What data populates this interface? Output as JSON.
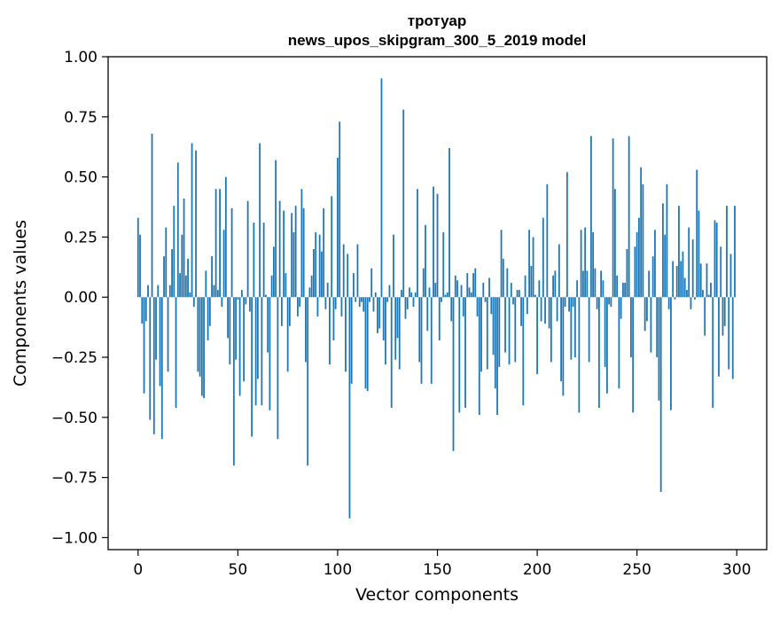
{
  "chart_data": {
    "type": "bar",
    "title": "тротуар",
    "subtitle": "news_upos_skipgram_300_5_2019 model",
    "xlabel": "Vector components",
    "ylabel": "Components values",
    "xlim": [
      -15,
      315
    ],
    "ylim": [
      -1.05,
      1.0
    ],
    "xticks": [
      0,
      50,
      100,
      150,
      200,
      250,
      300
    ],
    "xtick_labels": [
      "0",
      "50",
      "100",
      "150",
      "200",
      "250",
      "300"
    ],
    "yticks": [
      1.0,
      0.75,
      0.5,
      0.25,
      0.0,
      -0.25,
      -0.5,
      -0.75,
      -1.0
    ],
    "ytick_labels": [
      "1.00",
      "0.75",
      "0.50",
      "0.25",
      "0.00",
      "−0.25",
      "−0.50",
      "−0.75",
      "−1.00"
    ],
    "grid": false,
    "bar_color": "#1f77b4",
    "x": [
      0,
      1,
      2,
      3,
      4,
      5,
      6,
      7,
      8,
      9,
      10,
      11,
      12,
      13,
      14,
      15,
      16,
      17,
      18,
      19,
      20,
      21,
      22,
      23,
      24,
      25,
      26,
      27,
      28,
      29,
      30,
      31,
      32,
      33,
      34,
      35,
      36,
      37,
      38,
      39,
      40,
      41,
      42,
      43,
      44,
      45,
      46,
      47,
      48,
      49,
      50,
      51,
      52,
      53,
      54,
      55,
      56,
      57,
      58,
      59,
      60,
      61,
      62,
      63,
      64,
      65,
      66,
      67,
      68,
      69,
      70,
      71,
      72,
      73,
      74,
      75,
      76,
      77,
      78,
      79,
      80,
      81,
      82,
      83,
      84,
      85,
      86,
      87,
      88,
      89,
      90,
      91,
      92,
      93,
      94,
      95,
      96,
      97,
      98,
      99,
      100,
      101,
      102,
      103,
      104,
      105,
      106,
      107,
      108,
      109,
      110,
      111,
      112,
      113,
      114,
      115,
      116,
      117,
      118,
      119,
      120,
      121,
      122,
      123,
      124,
      125,
      126,
      127,
      128,
      129,
      130,
      131,
      132,
      133,
      134,
      135,
      136,
      137,
      138,
      139,
      140,
      141,
      142,
      143,
      144,
      145,
      146,
      147,
      148,
      149,
      150,
      151,
      152,
      153,
      154,
      155,
      156,
      157,
      158,
      159,
      160,
      161,
      162,
      163,
      164,
      165,
      166,
      167,
      168,
      169,
      170,
      171,
      172,
      173,
      174,
      175,
      176,
      177,
      178,
      179,
      180,
      181,
      182,
      183,
      184,
      185,
      186,
      187,
      188,
      189,
      190,
      191,
      192,
      193,
      194,
      195,
      196,
      197,
      198,
      199,
      200,
      201,
      202,
      203,
      204,
      205,
      206,
      207,
      208,
      209,
      210,
      211,
      212,
      213,
      214,
      215,
      216,
      217,
      218,
      219,
      220,
      221,
      222,
      223,
      224,
      225,
      226,
      227,
      228,
      229,
      230,
      231,
      232,
      233,
      234,
      235,
      236,
      237,
      238,
      239,
      240,
      241,
      242,
      243,
      244,
      245,
      246,
      247,
      248,
      249,
      250,
      251,
      252,
      253,
      254,
      255,
      256,
      257,
      258,
      259,
      260,
      261,
      262,
      263,
      264,
      265,
      266,
      267,
      268,
      269,
      270,
      271,
      272,
      273,
      274,
      275,
      276,
      277,
      278,
      279,
      280,
      281,
      282,
      283,
      284,
      285,
      286,
      287,
      288,
      289,
      290,
      291,
      292,
      293,
      294,
      295,
      296,
      297,
      298,
      299
    ],
    "values": [
      0.33,
      0.26,
      -0.11,
      -0.4,
      -0.1,
      0.05,
      -0.51,
      0.68,
      -0.57,
      -0.26,
      0.05,
      -0.37,
      -0.59,
      0.17,
      0.29,
      -0.31,
      0.05,
      0.2,
      0.38,
      -0.46,
      0.56,
      0.1,
      0.26,
      0.41,
      0.09,
      0.16,
      0.02,
      0.64,
      -0.04,
      0.61,
      -0.31,
      -0.33,
      -0.41,
      -0.42,
      0.11,
      -0.18,
      -0.12,
      0.17,
      0.05,
      0.45,
      0.03,
      0.45,
      -0.04,
      0.28,
      0.5,
      -0.17,
      -0.28,
      0.37,
      -0.7,
      -0.26,
      -0.01,
      -0.41,
      0.03,
      -0.35,
      -0.03,
      0.4,
      -0.06,
      -0.58,
      0.31,
      -0.45,
      -0.34,
      0.64,
      -0.45,
      0.31,
      0.01,
      -0.23,
      -0.47,
      0.09,
      0.21,
      0.57,
      -0.59,
      0.4,
      -0.12,
      0.36,
      0.1,
      -0.31,
      -0.12,
      0.35,
      0.27,
      0.38,
      -0.08,
      -0.04,
      0.45,
      0.37,
      -0.27,
      -0.7,
      0.04,
      0.09,
      0.2,
      0.27,
      -0.08,
      0.26,
      0.19,
      0.37,
      -0.05,
      0.06,
      -0.28,
      0.42,
      -0.18,
      -0.05,
      0.58,
      0.73,
      -0.08,
      0.22,
      -0.31,
      0.18,
      -0.92,
      -0.36,
      0.1,
      -0.02,
      0.22,
      -0.04,
      -0.02,
      -0.06,
      -0.38,
      -0.39,
      -0.02,
      0.12,
      -0.06,
      0.02,
      -0.15,
      -0.13,
      0.91,
      -0.18,
      -0.28,
      -0.02,
      0.05,
      -0.46,
      0.26,
      -0.26,
      -0.17,
      -0.3,
      0.03,
      0.78,
      -0.09,
      -0.05,
      0.04,
      0.02,
      -0.04,
      0.02,
      0.45,
      -0.27,
      -0.36,
      0.12,
      0.3,
      -0.14,
      0.04,
      -0.36,
      0.46,
      0.06,
      0.43,
      -0.18,
      -0.02,
      0.27,
      0.01,
      0.02,
      0.62,
      -0.1,
      -0.64,
      0.09,
      0.07,
      -0.48,
      0.05,
      -0.08,
      -0.46,
      0.1,
      0.04,
      0.02,
      0.1,
      0.12,
      -0.08,
      -0.49,
      -0.31,
      0.06,
      -0.02,
      -0.3,
      0.08,
      -0.07,
      -0.24,
      -0.38,
      -0.49,
      -0.29,
      0.28,
      0.16,
      -0.23,
      0.12,
      -0.28,
      0.06,
      -0.03,
      -0.27,
      0.03,
      0.03,
      -0.12,
      -0.45,
      0.09,
      -0.07,
      0.28,
      0.13,
      0.25,
      0.01,
      -0.32,
      0.07,
      -0.1,
      0.33,
      -0.11,
      0.47,
      -0.13,
      -0.27,
      0.09,
      0.11,
      -0.1,
      0.22,
      -0.35,
      -0.41,
      -0.04,
      0.52,
      -0.06,
      -0.26,
      -0.04,
      -0.25,
      0.07,
      -0.48,
      0.28,
      0.11,
      0.29,
      0.11,
      -0.27,
      0.67,
      0.27,
      0.12,
      -0.05,
      -0.46,
      0.11,
      0.07,
      -0.29,
      -0.4,
      -0.03,
      -0.04,
      0.66,
      0.45,
      0.09,
      -0.38,
      -0.09,
      0.06,
      0.06,
      0.2,
      0.67,
      -0.25,
      -0.48,
      0.21,
      0.27,
      0.33,
      0.54,
      0.47,
      -0.14,
      -0.1,
      0.11,
      -0.23,
      0.17,
      0.28,
      -0.25,
      -0.43,
      -0.81,
      0.39,
      0.26,
      0.47,
      -0.05,
      -0.47,
      0.15,
      -0.01,
      0.13,
      0.38,
      0.15,
      0.19,
      0.08,
      0.03,
      0.29,
      -0.05,
      0.24,
      -0.01,
      0.53,
      0.36,
      0.14,
      0.03,
      -0.16,
      0.14,
      0.01,
      0.06,
      -0.46,
      0.32,
      0.31,
      -0.33,
      0.21,
      -0.16,
      -0.12,
      0.38,
      -0.3,
      0.18,
      -0.34,
      0.38
    ]
  }
}
